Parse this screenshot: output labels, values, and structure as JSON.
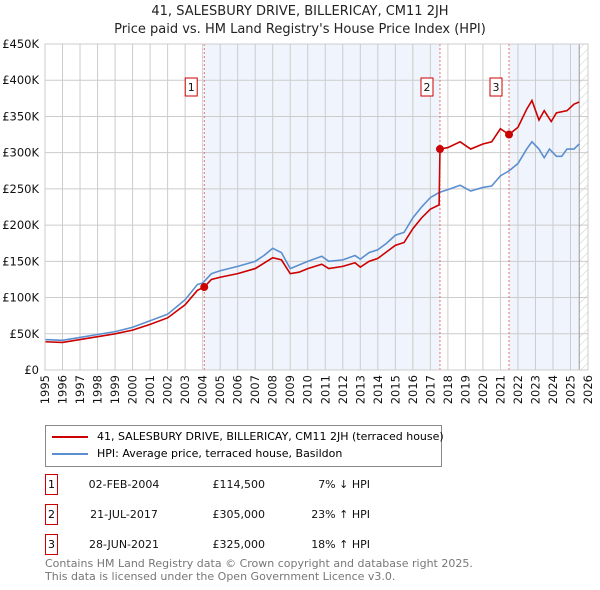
{
  "title": "41, SALESBURY DRIVE, BILLERICAY, CM11 2JH",
  "subtitle": "Price paid vs. HM Land Registry's House Price Index (HPI)",
  "colors": {
    "property": "#cc0000",
    "hpi": "#5b8fd0",
    "shade": "#f0f4fc",
    "grid": "#cccccc"
  },
  "chart_data": {
    "type": "line",
    "xlim": [
      1995,
      2026
    ],
    "ylim": [
      0,
      450000
    ],
    "x_ticks": [
      "1995",
      "1996",
      "1997",
      "1998",
      "1999",
      "2000",
      "2001",
      "2002",
      "2003",
      "2004",
      "2005",
      "2006",
      "2007",
      "2008",
      "2009",
      "2010",
      "2011",
      "2012",
      "2013",
      "2014",
      "2015",
      "2016",
      "2017",
      "2018",
      "2019",
      "2020",
      "2021",
      "2022",
      "2023",
      "2024",
      "2025",
      "2026"
    ],
    "y_ticks": [
      {
        "v": 0,
        "label": "£0"
      },
      {
        "v": 50000,
        "label": "£50K"
      },
      {
        "v": 100000,
        "label": "£100K"
      },
      {
        "v": 150000,
        "label": "£150K"
      },
      {
        "v": 200000,
        "label": "£200K"
      },
      {
        "v": 250000,
        "label": "£250K"
      },
      {
        "v": 300000,
        "label": "£300K"
      },
      {
        "v": 350000,
        "label": "£350K"
      },
      {
        "v": 400000,
        "label": "£400K"
      },
      {
        "v": 450000,
        "label": "£450K"
      }
    ],
    "grid": true,
    "shaded_ranges": [
      [
        2004.09,
        2017.55
      ],
      [
        2021.49,
        2025.5
      ]
    ],
    "hatched_from": 2025.5,
    "series": [
      {
        "name": "41, SALESBURY DRIVE, BILLERICAY, CM11 2JH (terraced house)",
        "key": "property",
        "points": [
          [
            1995,
            39
          ],
          [
            1996,
            38
          ],
          [
            1997,
            42
          ],
          [
            1998,
            46
          ],
          [
            1999,
            50
          ],
          [
            2000,
            55
          ],
          [
            2001,
            63
          ],
          [
            2002,
            72
          ],
          [
            2003,
            90
          ],
          [
            2003.7,
            110
          ],
          [
            2004.09,
            114.5
          ],
          [
            2004.5,
            125
          ],
          [
            2005,
            128
          ],
          [
            2006,
            133
          ],
          [
            2007,
            140
          ],
          [
            2008,
            155
          ],
          [
            2008.5,
            152
          ],
          [
            2009,
            133
          ],
          [
            2009.5,
            135
          ],
          [
            2010,
            140
          ],
          [
            2010.8,
            146
          ],
          [
            2011.2,
            140
          ],
          [
            2012,
            143
          ],
          [
            2012.7,
            148
          ],
          [
            2013,
            142
          ],
          [
            2013.5,
            150
          ],
          [
            2014,
            154
          ],
          [
            2014.5,
            163
          ],
          [
            2015,
            172
          ],
          [
            2015.5,
            176
          ],
          [
            2016,
            195
          ],
          [
            2016.5,
            210
          ],
          [
            2017,
            222
          ],
          [
            2017.5,
            228
          ],
          [
            2017.55,
            305
          ],
          [
            2018,
            307
          ],
          [
            2018.7,
            315
          ],
          [
            2019.3,
            305
          ],
          [
            2020,
            312
          ],
          [
            2020.5,
            315
          ],
          [
            2021,
            333
          ],
          [
            2021.49,
            325
          ],
          [
            2022,
            335
          ],
          [
            2022.5,
            360
          ],
          [
            2022.8,
            372
          ],
          [
            2023.2,
            345
          ],
          [
            2023.5,
            358
          ],
          [
            2023.9,
            343
          ],
          [
            2024.2,
            355
          ],
          [
            2024.8,
            358
          ],
          [
            2025.2,
            367
          ],
          [
            2025.5,
            370
          ]
        ]
      },
      {
        "name": "HPI: Average price, terraced house, Basildon",
        "key": "hpi",
        "points": [
          [
            1995,
            42
          ],
          [
            1996,
            41
          ],
          [
            1997,
            45
          ],
          [
            1998,
            49
          ],
          [
            1999,
            53
          ],
          [
            2000,
            59
          ],
          [
            2001,
            68
          ],
          [
            2002,
            77
          ],
          [
            2003,
            97
          ],
          [
            2003.7,
            118
          ],
          [
            2004,
            120
          ],
          [
            2004.5,
            133
          ],
          [
            2005,
            137
          ],
          [
            2006,
            143
          ],
          [
            2007,
            150
          ],
          [
            2007.5,
            158
          ],
          [
            2008,
            168
          ],
          [
            2008.5,
            162
          ],
          [
            2009,
            140
          ],
          [
            2009.5,
            145
          ],
          [
            2010,
            150
          ],
          [
            2010.8,
            157
          ],
          [
            2011.2,
            150
          ],
          [
            2012,
            152
          ],
          [
            2012.7,
            158
          ],
          [
            2013,
            153
          ],
          [
            2013.5,
            162
          ],
          [
            2014,
            166
          ],
          [
            2014.5,
            175
          ],
          [
            2015,
            186
          ],
          [
            2015.5,
            190
          ],
          [
            2016,
            210
          ],
          [
            2016.5,
            225
          ],
          [
            2017,
            238
          ],
          [
            2017.5,
            245
          ],
          [
            2018,
            249
          ],
          [
            2018.7,
            255
          ],
          [
            2019.3,
            247
          ],
          [
            2020,
            252
          ],
          [
            2020.5,
            254
          ],
          [
            2021,
            268
          ],
          [
            2021.5,
            275
          ],
          [
            2022,
            285
          ],
          [
            2022.5,
            305
          ],
          [
            2022.8,
            315
          ],
          [
            2023.2,
            305
          ],
          [
            2023.5,
            293
          ],
          [
            2023.8,
            305
          ],
          [
            2024.2,
            295
          ],
          [
            2024.5,
            295
          ],
          [
            2024.8,
            305
          ],
          [
            2025.2,
            305
          ],
          [
            2025.5,
            312
          ]
        ]
      }
    ],
    "sales": [
      {
        "n": "1",
        "x": 2004.09,
        "price": 114500,
        "date": "02-FEB-2004",
        "price_label": "£114,500",
        "hpi_diff": "7% ↓ HPI"
      },
      {
        "n": "2",
        "x": 2017.55,
        "price": 305000,
        "date": "21-JUL-2017",
        "price_label": "£305,000",
        "hpi_diff": "23% ↑ HPI"
      },
      {
        "n": "3",
        "x": 2021.49,
        "price": 325000,
        "date": "28-JUN-2021",
        "price_label": "£325,000",
        "hpi_diff": "18% ↑ HPI"
      }
    ]
  },
  "footer": [
    "Contains HM Land Registry data © Crown copyright and database right 2025.",
    "This data is licensed under the Open Government Licence v3.0."
  ]
}
